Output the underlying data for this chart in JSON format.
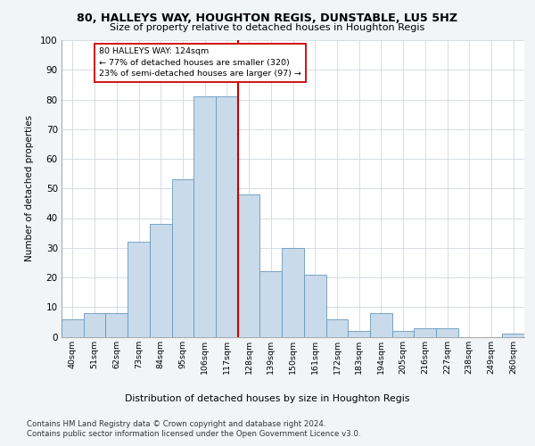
{
  "title1": "80, HALLEYS WAY, HOUGHTON REGIS, DUNSTABLE, LU5 5HZ",
  "title2": "Size of property relative to detached houses in Houghton Regis",
  "xlabel": "Distribution of detached houses by size in Houghton Regis",
  "ylabel": "Number of detached properties",
  "categories": [
    "40sqm",
    "51sqm",
    "62sqm",
    "73sqm",
    "84sqm",
    "95sqm",
    "106sqm",
    "117sqm",
    "128sqm",
    "139sqm",
    "150sqm",
    "161sqm",
    "172sqm",
    "183sqm",
    "194sqm",
    "205sqm",
    "216sqm",
    "227sqm",
    "238sqm",
    "249sqm",
    "260sqm"
  ],
  "values": [
    6,
    8,
    8,
    32,
    38,
    53,
    81,
    81,
    48,
    22,
    30,
    21,
    6,
    2,
    8,
    2,
    3,
    3,
    0,
    0,
    1
  ],
  "bar_color": "#c9daea",
  "bar_edge_color": "#6699bb",
  "reference_line_x": 7.5,
  "reference_line_color": "#cc0000",
  "annotation_text": "80 HALLEYS WAY: 124sqm\n← 77% of detached houses are smaller (320)\n23% of semi-detached houses are larger (97) →",
  "annotation_box_color": "#ffffff",
  "annotation_box_edge_color": "#cc0000",
  "ylim": [
    0,
    100
  ],
  "yticks": [
    0,
    10,
    20,
    30,
    40,
    50,
    60,
    70,
    80,
    90,
    100
  ],
  "footer1": "Contains HM Land Registry data © Crown copyright and database right 2024.",
  "footer2": "Contains public sector information licensed under the Open Government Licence v3.0.",
  "background_color": "#f2f5f8",
  "plot_bg_color": "#ffffff",
  "grid_color": "#d0d8e0"
}
